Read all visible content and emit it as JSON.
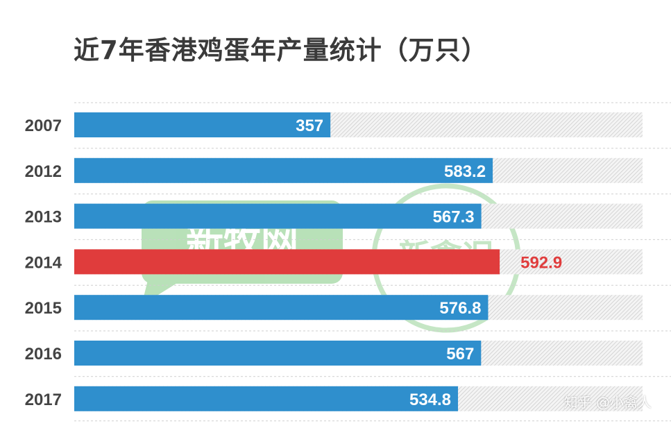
{
  "title": "近7年香港鸡蛋年产量统计（万只）",
  "watermark": {
    "text": "知乎 @小禽人",
    "logo_left": "新牧网",
    "logo_right": "新禽况"
  },
  "colors": {
    "bar": "#2f8fcd",
    "highlight": "#e03c3c",
    "track": "#d9d9d9",
    "value_label_inside": "#ffffff",
    "value_label_outside": "#e03c3c",
    "year_label": "#444444",
    "separator": "#cfcfcf"
  },
  "chart_data": {
    "type": "bar",
    "orientation": "horizontal",
    "title": "近7年香港鸡蛋年产量统计（万只）",
    "categories": [
      "2007",
      "2012",
      "2013",
      "2014",
      "2015",
      "2016",
      "2017"
    ],
    "series": [
      {
        "values": [
          357,
          583.2,
          567.3,
          592.9,
          576.8,
          567,
          534.8
        ]
      }
    ],
    "value_labels": [
      "357",
      "583.2",
      "567.3",
      "592.9",
      "576.8",
      "567",
      "534.8"
    ],
    "highlight_category": "2014",
    "xlim": [
      0,
      792
    ],
    "grid": false,
    "legend": "none"
  }
}
